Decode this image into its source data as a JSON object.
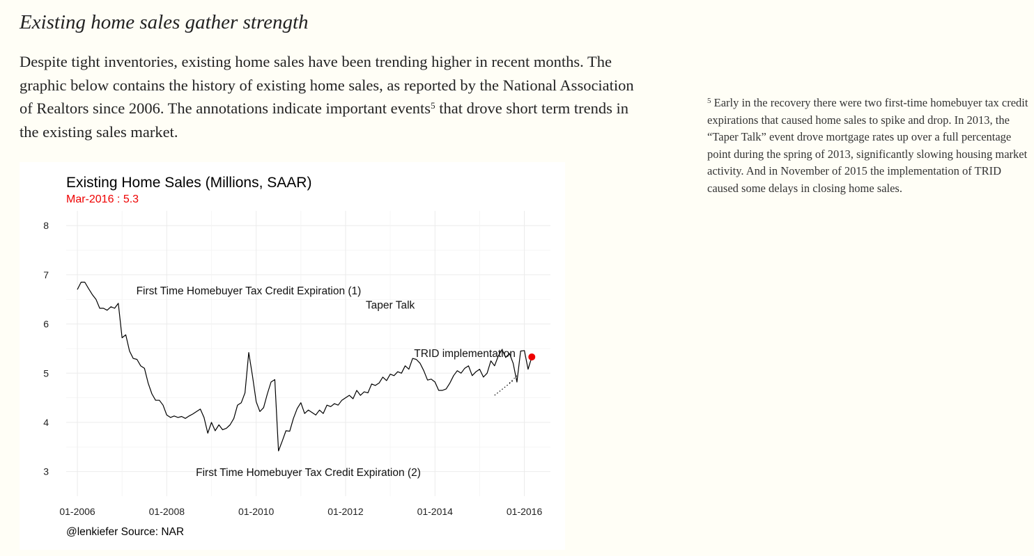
{
  "article": {
    "heading": "Existing home sales gather strength",
    "intro_before_ref": "Despite tight inventories, existing home sales have been trending higher in recent months. The graphic below contains the history of existing home sales, as reported by the National Association of Realtors since 2006. The annotations indicate important events",
    "footnote_ref": "5",
    "intro_after_ref": " that drove short term trends in the existing sales market."
  },
  "footnote": {
    "number": "5",
    "text": "Early in the recovery there were two first-time homebuyer tax credit expirations that caused home sales to spike and drop. In 2013, the “Taper Talk” event drove mortgage rates up over a full percentage point during the spring of 2013, significantly slowing housing market activity. And in November of 2015 the implementation of TRID caused some delays in closing home sales."
  },
  "chart_data": {
    "type": "line",
    "title": "Existing Home Sales (Millions, SAAR)",
    "subtitle": "Mar-2016 : 5.3",
    "caption": "@lenkiefer Source: NAR",
    "xlabel": "",
    "ylabel": "",
    "ylim": [
      2.5,
      8.3
    ],
    "yticks": [
      3,
      4,
      5,
      6,
      7,
      8
    ],
    "x_tick_labels": [
      "01-2006",
      "01-2008",
      "01-2010",
      "01-2012",
      "01-2014",
      "01-2016"
    ],
    "x_tick_dates": [
      "2006-01",
      "2008-01",
      "2010-01",
      "2012-01",
      "2014-01",
      "2016-01"
    ],
    "x_range": [
      "2005-10",
      "2016-08"
    ],
    "grid": true,
    "colors": {
      "line": "#000000",
      "highlight": "#ee0000",
      "subtitle": "#ee0000",
      "grid": "#ebebeb"
    },
    "highlight": {
      "x": "2016-03",
      "y": 5.33
    },
    "series": [
      {
        "x": [
          "2006-01",
          "2006-02",
          "2006-03",
          "2006-04",
          "2006-05",
          "2006-06",
          "2006-07",
          "2006-08",
          "2006-09",
          "2006-10",
          "2006-11",
          "2006-12",
          "2007-01",
          "2007-02",
          "2007-03",
          "2007-04",
          "2007-05",
          "2007-06",
          "2007-07",
          "2007-08",
          "2007-09",
          "2007-10",
          "2007-11",
          "2007-12",
          "2008-01",
          "2008-02",
          "2008-03",
          "2008-04",
          "2008-05",
          "2008-06",
          "2008-07",
          "2008-08",
          "2008-09",
          "2008-10",
          "2008-11",
          "2008-12",
          "2009-01",
          "2009-02",
          "2009-03",
          "2009-04",
          "2009-05",
          "2009-06",
          "2009-07",
          "2009-08",
          "2009-09",
          "2009-10",
          "2009-11",
          "2009-12",
          "2010-01",
          "2010-02",
          "2010-03",
          "2010-04",
          "2010-05",
          "2010-06",
          "2010-07",
          "2010-08",
          "2010-09",
          "2010-10",
          "2010-11",
          "2010-12",
          "2011-01",
          "2011-02",
          "2011-03",
          "2011-04",
          "2011-05",
          "2011-06",
          "2011-07",
          "2011-08",
          "2011-09",
          "2011-10",
          "2011-11",
          "2011-12",
          "2012-01",
          "2012-02",
          "2012-03",
          "2012-04",
          "2012-05",
          "2012-06",
          "2012-07",
          "2012-08",
          "2012-09",
          "2012-10",
          "2012-11",
          "2012-12",
          "2013-01",
          "2013-02",
          "2013-03",
          "2013-04",
          "2013-05",
          "2013-06",
          "2013-07",
          "2013-08",
          "2013-09",
          "2013-10",
          "2013-11",
          "2013-12",
          "2014-01",
          "2014-02",
          "2014-03",
          "2014-04",
          "2014-05",
          "2014-06",
          "2014-07",
          "2014-08",
          "2014-09",
          "2014-10",
          "2014-11",
          "2014-12",
          "2015-01",
          "2015-02",
          "2015-03",
          "2015-04",
          "2015-05",
          "2015-06",
          "2015-07",
          "2015-08",
          "2015-09",
          "2015-10",
          "2015-11",
          "2015-12",
          "2016-01",
          "2016-02",
          "2016-03"
        ],
        "y": [
          6.7,
          6.85,
          6.85,
          6.72,
          6.6,
          6.5,
          6.32,
          6.32,
          6.28,
          6.35,
          6.32,
          6.42,
          5.72,
          5.78,
          5.45,
          5.3,
          5.28,
          5.15,
          5.1,
          4.8,
          4.58,
          4.45,
          4.45,
          4.35,
          4.15,
          4.1,
          4.13,
          4.1,
          4.12,
          4.08,
          4.13,
          4.17,
          4.22,
          4.27,
          4.1,
          3.78,
          4.0,
          3.83,
          3.95,
          3.85,
          3.88,
          3.95,
          4.08,
          4.35,
          4.4,
          4.6,
          5.42,
          4.95,
          4.42,
          4.22,
          4.3,
          4.58,
          4.82,
          4.87,
          3.42,
          3.62,
          3.83,
          3.82,
          4.08,
          4.28,
          4.4,
          4.18,
          4.25,
          4.2,
          4.15,
          4.25,
          4.18,
          4.35,
          4.32,
          4.38,
          4.35,
          4.45,
          4.5,
          4.55,
          4.48,
          4.65,
          4.55,
          4.62,
          4.6,
          4.78,
          4.75,
          4.8,
          4.92,
          4.85,
          4.98,
          4.95,
          5.03,
          5.0,
          5.15,
          5.08,
          5.3,
          5.28,
          5.2,
          5.05,
          4.86,
          4.88,
          4.82,
          4.65,
          4.65,
          4.68,
          4.8,
          4.95,
          5.05,
          5.0,
          5.1,
          5.15,
          4.95,
          5.03,
          5.08,
          4.92,
          5.0,
          5.25,
          5.15,
          5.35,
          5.48,
          5.32,
          5.4,
          5.2,
          4.82,
          5.45,
          5.46,
          5.08,
          5.33
        ]
      }
    ],
    "annotations": [
      {
        "text": "First Time Homebuyer Tax Credit Expiration (1)",
        "x": "2009-11",
        "y": 6.67
      },
      {
        "text": "Taper Talk",
        "x": "2013-01",
        "y": 6.38
      },
      {
        "text": "TRID implementation",
        "x": "2014-09",
        "y": 5.4
      },
      {
        "text": "First Time Homebuyer Tax Credit Expiration (2)",
        "x": "2011-03",
        "y": 2.98
      }
    ]
  }
}
